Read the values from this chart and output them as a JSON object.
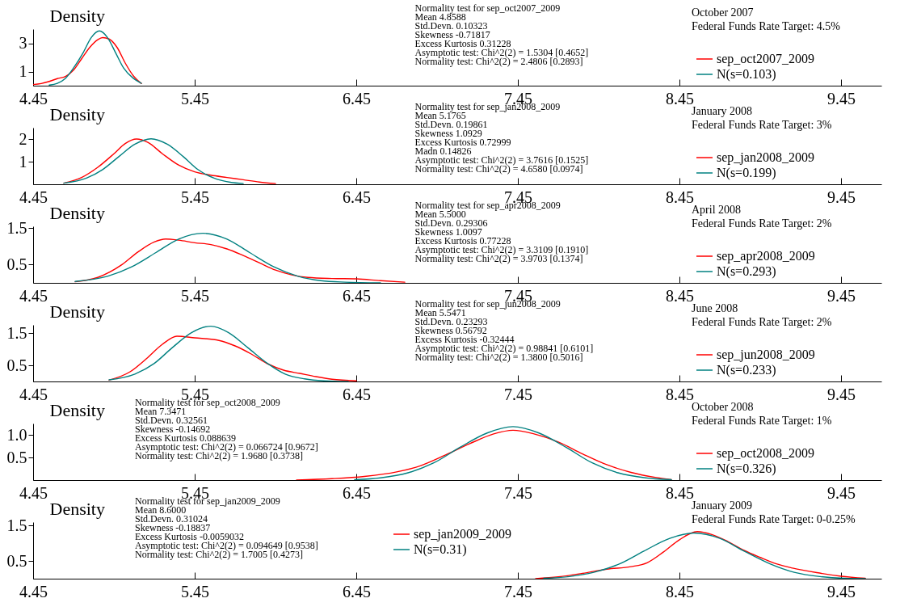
{
  "chart_data": [
    {
      "type": "line",
      "title": "October 2007",
      "subtitle": "Federal Funds Rate Target: 4.5%",
      "ylabel": "Density",
      "legend": "right",
      "xlim": [
        4.45,
        9.7
      ],
      "xticks": [
        4.45,
        5.45,
        6.45,
        7.45,
        8.45,
        9.45
      ],
      "ylim": [
        0,
        4
      ],
      "yticks": [
        1,
        3
      ],
      "annotations": [
        "Normality test for sep_oct2007_2009",
        "Mean 4.8588",
        "Std.Devn. 0.10323",
        "Skewness -0.71817",
        "Excess Kurtosis 0.31228",
        "Asymptotic test: Chi^2(2) = 1.5304 [0.4652]",
        "Normality test: Chi^2(2) = 2.4806 [0.2893]"
      ],
      "series": [
        {
          "name": "sep_oct2007_2009",
          "color": "#ff0000",
          "x": [
            4.45,
            4.5,
            4.55,
            4.6,
            4.65,
            4.7,
            4.75,
            4.8,
            4.85,
            4.88,
            4.92,
            4.97,
            5.02,
            5.07,
            5.12
          ],
          "values": [
            0.08,
            0.15,
            0.3,
            0.5,
            0.65,
            1.1,
            1.9,
            2.7,
            3.25,
            3.4,
            3.3,
            2.7,
            1.6,
            0.7,
            0.15
          ]
        },
        {
          "name": "N(s=0.103)",
          "color": "#008080",
          "x": [
            4.55,
            4.6,
            4.65,
            4.7,
            4.76,
            4.81,
            4.86,
            4.91,
            4.96,
            5.01,
            5.07,
            5.12
          ],
          "values": [
            0.04,
            0.17,
            0.52,
            1.25,
            2.34,
            3.41,
            3.87,
            3.41,
            2.34,
            1.25,
            0.52,
            0.17
          ]
        }
      ]
    },
    {
      "type": "line",
      "title": "January 2008",
      "subtitle": "Federal Funds Rate Target: 3%",
      "ylabel": "Density",
      "legend": "right",
      "xlim": [
        4.45,
        9.7
      ],
      "xticks": [
        4.45,
        5.45,
        6.45,
        7.45,
        8.45,
        9.45
      ],
      "ylim": [
        0,
        2.5
      ],
      "yticks": [
        1,
        2
      ],
      "annotations": [
        "Normality test for sep_jan2008_2009",
        "Mean 5.1765",
        "Std.Devn. 0.19861",
        "Skewness 1.0929",
        "Excess Kurtosis 0.72999",
        "Madn 0.14826",
        "Asymptotic test: Chi^2(2) = 3.7616 [0.1525]",
        "Normality test: Chi^2(2) = 4.6580 [0.0974]"
      ],
      "series": [
        {
          "name": "sep_jan2008_2009",
          "color": "#ff0000",
          "x": [
            4.64,
            4.75,
            4.85,
            4.95,
            5.02,
            5.09,
            5.16,
            5.25,
            5.35,
            5.45,
            5.55,
            5.65,
            5.75,
            5.85,
            5.95
          ],
          "values": [
            0.05,
            0.3,
            0.75,
            1.35,
            1.8,
            2.0,
            1.85,
            1.35,
            0.85,
            0.55,
            0.4,
            0.3,
            0.2,
            0.1,
            0.03
          ]
        },
        {
          "name": "N(s=0.199)",
          "color": "#008080",
          "x": [
            4.64,
            4.78,
            4.88,
            4.98,
            5.08,
            5.18,
            5.28,
            5.38,
            5.47,
            5.57,
            5.67,
            5.75
          ],
          "values": [
            0.05,
            0.27,
            0.65,
            1.22,
            1.77,
            2.01,
            1.77,
            1.22,
            0.65,
            0.27,
            0.09,
            0.03
          ]
        }
      ]
    },
    {
      "type": "line",
      "title": "April 2008",
      "subtitle": "Federal Funds Rate Target: 2%",
      "ylabel": "Density",
      "legend": "right",
      "xlim": [
        4.45,
        9.7
      ],
      "xticks": [
        4.45,
        5.45,
        6.45,
        7.45,
        8.45,
        9.45
      ],
      "ylim": [
        0,
        1.55
      ],
      "yticks": [
        0.5,
        1.5
      ],
      "annotations": [
        "Normality test for sep_apr2008_2009",
        "Mean 5.5000",
        "Std.Devn. 0.29306",
        "Skewness 1.0097",
        "Excess Kurtosis 0.77228",
        "Asymptotic test: Chi^2(2) = 3.3109 [0.1910]",
        "Normality test: Chi^2(2) = 3.9703 [0.1374]"
      ],
      "series": [
        {
          "name": "sep_apr2008_2009",
          "color": "#ff0000",
          "x": [
            4.71,
            4.85,
            5.0,
            5.1,
            5.2,
            5.27,
            5.35,
            5.45,
            5.55,
            5.65,
            5.75,
            5.85,
            5.95,
            6.05,
            6.15,
            6.3,
            6.45,
            6.6,
            6.75
          ],
          "values": [
            0.03,
            0.15,
            0.5,
            0.85,
            1.12,
            1.2,
            1.17,
            1.1,
            1.05,
            0.93,
            0.75,
            0.55,
            0.35,
            0.22,
            0.15,
            0.12,
            0.11,
            0.06,
            0.02
          ]
        },
        {
          "name": "N(s=0.293)",
          "color": "#008080",
          "x": [
            4.71,
            4.91,
            5.06,
            5.21,
            5.35,
            5.5,
            5.65,
            5.79,
            5.94,
            6.09,
            6.23,
            6.38,
            6.6
          ],
          "values": [
            0.04,
            0.18,
            0.44,
            0.83,
            1.2,
            1.36,
            1.2,
            0.83,
            0.44,
            0.18,
            0.06,
            0.02,
            0.0
          ]
        }
      ]
    },
    {
      "type": "line",
      "title": "June 2008",
      "subtitle": "Federal Funds Rate Target: 2%",
      "ylabel": "Density",
      "legend": "right",
      "xlim": [
        4.45,
        9.7
      ],
      "xticks": [
        4.45,
        5.45,
        6.45,
        7.45,
        8.45,
        9.45
      ],
      "ylim": [
        0,
        1.75
      ],
      "yticks": [
        0.5,
        1.5
      ],
      "annotations": [
        "Normality test for sep_jun2008_2009",
        "Mean 5.5471",
        "Std.Devn. 0.23293",
        "Skewness 0.56792",
        "Excess Kurtosis -0.32444",
        "Asymptotic test: Chi^2(2) = 0.98841 [0.6101]",
        "Normality test: Chi^2(2) = 1.3800 [0.5016]"
      ],
      "series": [
        {
          "name": "sep_jun2008_2009",
          "color": "#ff0000",
          "x": [
            4.92,
            5.05,
            5.15,
            5.25,
            5.34,
            5.45,
            5.6,
            5.7,
            5.8,
            5.9,
            6.0,
            6.1,
            6.2,
            6.3,
            6.45
          ],
          "values": [
            0.04,
            0.3,
            0.7,
            1.15,
            1.4,
            1.35,
            1.27,
            1.1,
            0.85,
            0.55,
            0.35,
            0.25,
            0.15,
            0.07,
            0.02
          ]
        },
        {
          "name": "N(s=0.233)",
          "color": "#008080",
          "x": [
            4.92,
            5.08,
            5.2,
            5.31,
            5.43,
            5.55,
            5.66,
            5.78,
            5.9,
            6.01,
            6.13,
            6.25,
            6.4
          ],
          "values": [
            0.05,
            0.23,
            0.56,
            1.04,
            1.51,
            1.71,
            1.51,
            1.04,
            0.56,
            0.23,
            0.08,
            0.02,
            0.0
          ]
        }
      ]
    },
    {
      "type": "line",
      "title": "October 2008",
      "subtitle": "Federal Funds Rate Target: 1%",
      "ylabel": "Density",
      "legend": "right",
      "xlim": [
        4.45,
        9.7
      ],
      "xticks": [
        4.45,
        5.45,
        6.45,
        7.45,
        8.45,
        9.45
      ],
      "ylim": [
        0,
        1.25
      ],
      "yticks": [
        0.5,
        {
          "value": 1,
          "label": "1.0"
        }
      ],
      "annotations": [
        "Normality test for sep_oct2008_2009",
        "Mean 7.3471",
        "Std.Devn. 0.32561",
        "Skewness -0.14692",
        "Excess Kurtosis 0.088639",
        "Asymptotic test: Chi^2(2) = 0.066724 [0.9672]",
        "Normality test: Chi^2(2) = 1.9680 [0.3738]"
      ],
      "series": [
        {
          "name": "sep_oct2008_2009",
          "color": "#ff0000",
          "x": [
            6.08,
            6.3,
            6.5,
            6.7,
            6.85,
            7.0,
            7.15,
            7.3,
            7.42,
            7.55,
            7.7,
            7.85,
            8.0,
            8.15,
            8.3,
            8.4
          ],
          "values": [
            0.0,
            0.03,
            0.08,
            0.18,
            0.32,
            0.55,
            0.8,
            1.02,
            1.1,
            1.02,
            0.84,
            0.58,
            0.34,
            0.17,
            0.06,
            0.01
          ]
        },
        {
          "name": "N(s=0.326)",
          "color": "#008080",
          "x": [
            6.44,
            6.6,
            6.77,
            6.93,
            7.09,
            7.26,
            7.42,
            7.58,
            7.75,
            7.91,
            8.07,
            8.24,
            8.4
          ],
          "values": [
            0.01,
            0.05,
            0.16,
            0.38,
            0.72,
            1.04,
            1.18,
            1.04,
            0.72,
            0.38,
            0.16,
            0.05,
            0.01
          ]
        }
      ]
    },
    {
      "type": "line",
      "title": "January 2009",
      "subtitle": "Federal Funds Rate Target: 0-0.25%",
      "ylabel": "Density",
      "legend": "top",
      "xlim": [
        4.45,
        9.7
      ],
      "xticks": [
        4.45,
        5.45,
        6.45,
        7.45,
        8.45,
        9.45
      ],
      "ylim": [
        0,
        1.6
      ],
      "yticks": [
        0.5,
        1.5
      ],
      "annotations": [
        "Normality test for sep_jan2009_2009",
        "Mean 8.6000",
        "Std.Devn. 0.31024",
        "Skewness -0.18837",
        "Excess Kurtosis -0.0059032",
        "Asymptotic test: Chi^2(2) = 0.094649 [0.9538]",
        "Normality test: Chi^2(2) = 1.7005 [0.4273]"
      ],
      "series": [
        {
          "name": "sep_jan2009_2009",
          "color": "#ff0000",
          "x": [
            7.56,
            7.7,
            7.85,
            8.0,
            8.15,
            8.25,
            8.35,
            8.45,
            8.56,
            8.65,
            8.75,
            8.85,
            8.95,
            9.05,
            9.15,
            9.3,
            9.45,
            9.6
          ],
          "values": [
            0.0,
            0.05,
            0.15,
            0.27,
            0.34,
            0.45,
            0.75,
            1.1,
            1.33,
            1.25,
            1.05,
            0.8,
            0.6,
            0.42,
            0.3,
            0.17,
            0.07,
            0.01
          ]
        },
        {
          "name": "N(s=0.31)",
          "color": "#008080",
          "x": [
            7.61,
            7.77,
            7.92,
            8.08,
            8.23,
            8.39,
            8.54,
            8.7,
            8.85,
            9.01,
            9.16,
            9.32,
            9.47,
            9.6
          ],
          "values": [
            0.01,
            0.06,
            0.18,
            0.42,
            0.78,
            1.14,
            1.29,
            1.14,
            0.78,
            0.42,
            0.18,
            0.06,
            0.01,
            0.0
          ]
        }
      ]
    }
  ]
}
